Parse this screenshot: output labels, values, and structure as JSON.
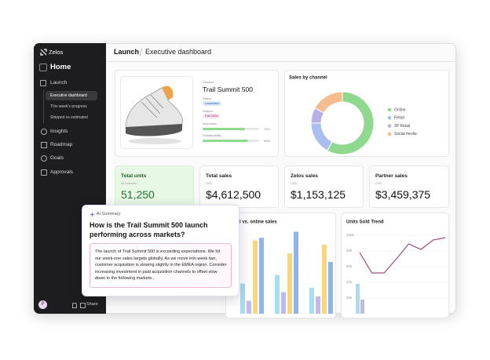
{
  "sidebar": {
    "brand": "Zelos",
    "workspace": "Home",
    "nav": [
      "Launch",
      "Insights",
      "Roadmap",
      "Goals",
      "Approvals"
    ],
    "subnav": [
      "Executive dashboard",
      "This week's progress",
      "Shipped vs estimated"
    ],
    "avatar": "P",
    "share": "Share"
  },
  "breadcrumb": [
    "Launch",
    "Executive dashboard"
  ],
  "product": {
    "caption": "Product",
    "name": "Trail Summit 500",
    "status_label": "Status",
    "status": "Launched",
    "season_label": "Season",
    "season": "Fall 2024",
    "metrics": [
      {
        "label": "Innovation",
        "value": 75,
        "value_label": "75%"
      },
      {
        "label": "Sustainability",
        "value": 80,
        "value_label": "80%"
      }
    ]
  },
  "kpis": [
    {
      "title": "Total units",
      "subtitle": "All markets",
      "value": "51,250"
    },
    {
      "title": "Total sales",
      "subtitle": "USD",
      "value": "$4,612,500"
    },
    {
      "title": "Zelos sales",
      "subtitle": "USD",
      "value": "$1,153,125"
    },
    {
      "title": "Partner sales",
      "subtitle": "USD",
      "value": "$3,459,375"
    }
  ],
  "ai_summary": {
    "badge": "AI Summary",
    "question": "How is the Trail Summit 500 launch performing across markets?",
    "answer": "The launch of Trail Summit 500 is exceeding expectations. We hit our week-one sales targets globally. As we move into week two, customer acquisition is slowing slightly in the EMEA region. Consider increasing investment in paid acquisition channels to offset slow down in the following markets..."
  },
  "chart_data": [
    {
      "type": "pie",
      "title": "Sales by channel",
      "categories": [
        "Online",
        "Retail",
        "3P Retail",
        "Social media"
      ],
      "values": [
        58,
        17,
        8,
        17
      ],
      "colors": [
        "#8fd98f",
        "#a9bff2",
        "#b9b0ea",
        "#f6bc8e"
      ]
    },
    {
      "type": "bar",
      "title": "ail vs. online sales",
      "categories": [
        null,
        null,
        null
      ],
      "ylim": [
        0,
        100
      ],
      "series": [
        {
          "color": "#a8dcf5",
          "values": [
            35,
            45,
            30
          ]
        },
        {
          "color": "#c2b8f0",
          "values": [
            15,
            25,
            20
          ]
        },
        {
          "color": "#f7d77a",
          "values": [
            85,
            70,
            80
          ]
        },
        {
          "color": "#8fb3ef",
          "values": [
            88,
            95,
            60
          ]
        }
      ]
    },
    {
      "type": "line",
      "title": "Units Sold Trend",
      "categories": [
        null,
        null,
        null,
        null,
        null,
        null,
        null,
        null
      ],
      "ylim": [
        0,
        100000
      ],
      "yticks": [
        {
          "value": 100000,
          "label": "100k"
        },
        {
          "value": 80000,
          "label": "80k"
        },
        {
          "value": 60000,
          "label": "60k"
        },
        {
          "value": 40000,
          "label": "40k"
        },
        {
          "value": 20000,
          "label": "20k"
        }
      ],
      "grid": true,
      "series": [
        {
          "kind": "line",
          "color": "#a24d7c",
          "values": [
            78000,
            52000,
            52000,
            70000,
            89000,
            82000,
            94000,
            97000
          ]
        },
        {
          "kind": "bar",
          "color": "#a8dcf5",
          "values": [
            38000,
            null,
            null,
            null,
            null,
            null,
            null,
            null
          ]
        },
        {
          "kind": "bar",
          "color": "#c2b8f0",
          "values": [
            18000,
            null,
            null,
            null,
            null,
            null,
            null,
            null
          ]
        }
      ]
    }
  ]
}
